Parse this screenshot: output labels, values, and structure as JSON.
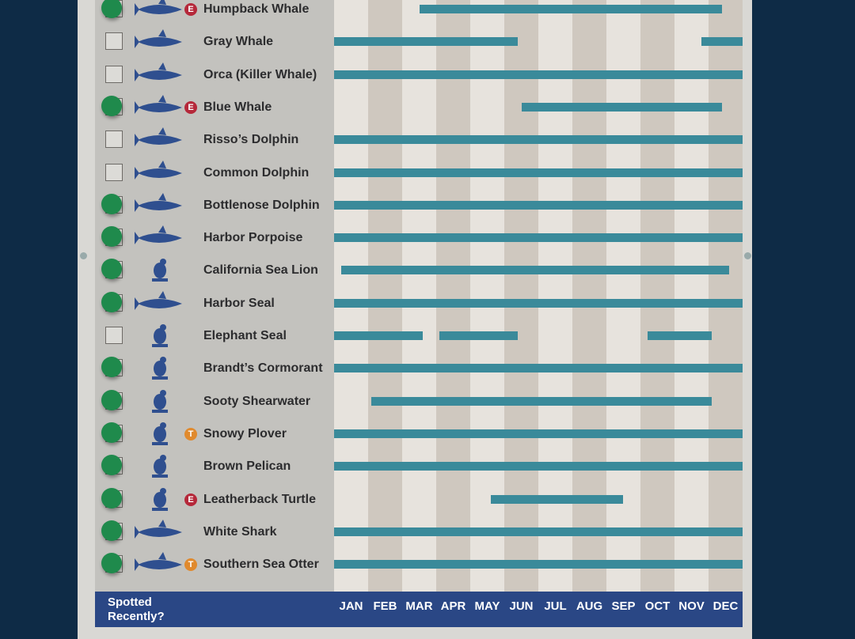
{
  "chart_data": {
    "type": "bar",
    "subtype": "seasonal-range",
    "categories": [
      "JAN",
      "FEB",
      "MAR",
      "APR",
      "MAY",
      "JUN",
      "JUL",
      "AUG",
      "SEP",
      "OCT",
      "NOV",
      "DEC"
    ],
    "xlim": [
      0,
      12
    ],
    "colors": {
      "bar": "#3a8a9a",
      "spotted": "#1f8a4c",
      "endangered": "#b5283a",
      "threatened": "#e08a2e",
      "footer": "#2a4785"
    },
    "footer_label": "Spotted Recently?",
    "series": [
      {
        "name": "Humpback Whale",
        "icon": "humpback-whale",
        "badge": "E",
        "spotted": true,
        "ranges": [
          [
            2.5,
            11.4
          ]
        ]
      },
      {
        "name": "Gray Whale",
        "icon": "gray-whale",
        "badge": "",
        "spotted": false,
        "ranges": [
          [
            0,
            5.4
          ],
          [
            10.8,
            12
          ]
        ]
      },
      {
        "name": "Orca (Killer Whale)",
        "icon": "orca",
        "badge": "",
        "spotted": false,
        "ranges": [
          [
            0,
            12
          ]
        ]
      },
      {
        "name": "Blue Whale",
        "icon": "blue-whale",
        "badge": "E",
        "spotted": true,
        "ranges": [
          [
            5.5,
            11.4
          ]
        ]
      },
      {
        "name": "Risso’s Dolphin",
        "icon": "dolphin",
        "badge": "",
        "spotted": false,
        "ranges": [
          [
            0,
            12
          ]
        ]
      },
      {
        "name": "Common Dolphin",
        "icon": "dolphin",
        "badge": "",
        "spotted": false,
        "ranges": [
          [
            0,
            12
          ]
        ]
      },
      {
        "name": "Bottlenose Dolphin",
        "icon": "dolphin",
        "badge": "",
        "spotted": true,
        "ranges": [
          [
            0,
            12
          ]
        ]
      },
      {
        "name": "Harbor Porpoise",
        "icon": "porpoise",
        "badge": "",
        "spotted": true,
        "ranges": [
          [
            0,
            12
          ]
        ]
      },
      {
        "name": "California Sea Lion",
        "icon": "sea-lion",
        "badge": "",
        "spotted": true,
        "ranges": [
          [
            0.2,
            11.6
          ]
        ]
      },
      {
        "name": "Harbor Seal",
        "icon": "seal",
        "badge": "",
        "spotted": true,
        "ranges": [
          [
            0,
            12
          ]
        ]
      },
      {
        "name": "Elephant Seal",
        "icon": "elephant-seal",
        "badge": "",
        "spotted": false,
        "ranges": [
          [
            0,
            2.6
          ],
          [
            3.1,
            5.4
          ],
          [
            9.2,
            11.1
          ]
        ]
      },
      {
        "name": "Brandt’s Cormorant",
        "icon": "cormorant",
        "badge": "",
        "spotted": true,
        "ranges": [
          [
            0,
            12
          ]
        ]
      },
      {
        "name": "Sooty Shearwater",
        "icon": "shearwater",
        "badge": "",
        "spotted": true,
        "ranges": [
          [
            1.1,
            11.1
          ]
        ]
      },
      {
        "name": "Snowy Plover",
        "icon": "plover",
        "badge": "T",
        "spotted": true,
        "ranges": [
          [
            0,
            12
          ]
        ]
      },
      {
        "name": "Brown Pelican",
        "icon": "pelican",
        "badge": "",
        "spotted": true,
        "ranges": [
          [
            0,
            12
          ]
        ]
      },
      {
        "name": "Leatherback Turtle",
        "icon": "turtle",
        "badge": "E",
        "spotted": true,
        "ranges": [
          [
            4.6,
            8.5
          ]
        ]
      },
      {
        "name": "White Shark",
        "icon": "shark",
        "badge": "",
        "spotted": true,
        "ranges": [
          [
            0,
            12
          ]
        ]
      },
      {
        "name": "Southern Sea Otter",
        "icon": "sea-otter",
        "badge": "T",
        "spotted": true,
        "ranges": [
          [
            0,
            12
          ]
        ]
      }
    ]
  }
}
